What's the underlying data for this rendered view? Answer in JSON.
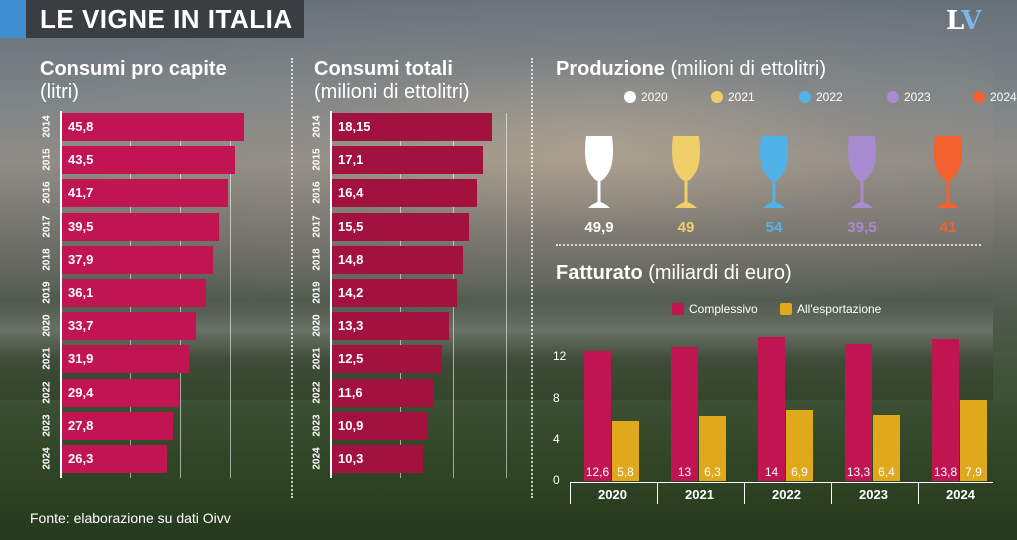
{
  "header": {
    "title": "LE VIGNE IN ITALIA",
    "logo_l": "L",
    "logo_v": "V"
  },
  "colors": {
    "accent_blue": "#3f8fd1",
    "bar_per_capita": "#c11552",
    "bar_total": "#a3123f",
    "complessivo": "#c11552",
    "esportazione": "#e0a91c"
  },
  "sections": {
    "per_capita_title": "Consumi pro capite",
    "per_capita_sub": "(litri)",
    "total_title": "Consumi totali",
    "total_sub": "(milioni di ettolitri)",
    "production_title": "Produzione",
    "production_sub": "(milioni di ettolitri)",
    "revenue_title": "Fatturato",
    "revenue_sub": "(miliardi di euro)"
  },
  "source": "Fonte: elaborazione su dati Oivv",
  "chart_data": [
    {
      "type": "bar",
      "orientation": "horizontal",
      "title": "Consumi pro capite (litri)",
      "categories": [
        "2014",
        "2015",
        "2016",
        "2017",
        "2018",
        "2019",
        "2020",
        "2021",
        "2022",
        "2023",
        "2024"
      ],
      "values": [
        45.8,
        43.5,
        41.7,
        39.5,
        37.9,
        36.1,
        33.7,
        31.9,
        29.4,
        27.8,
        26.3
      ],
      "labels": [
        "45,8",
        "43,5",
        "41,7",
        "39,5",
        "37,9",
        "36,1",
        "33,7",
        "31,9",
        "29,4",
        "27,8",
        "26,3"
      ],
      "xlim": [
        0,
        52
      ]
    },
    {
      "type": "bar",
      "orientation": "horizontal",
      "title": "Consumi totali (milioni di ettolitri)",
      "categories": [
        "2014",
        "2015",
        "2016",
        "2017",
        "2018",
        "2019",
        "2020",
        "2021",
        "2022",
        "2023",
        "2024"
      ],
      "values": [
        18.15,
        17.1,
        16.4,
        15.5,
        14.8,
        14.2,
        13.3,
        12.5,
        11.6,
        10.9,
        10.3
      ],
      "labels": [
        "18,15",
        "17,1",
        "16,4",
        "15,5",
        "14,8",
        "14,2",
        "13,3",
        "12,5",
        "11,6",
        "10,9",
        "10,3"
      ],
      "xlim": [
        0,
        20.5
      ]
    },
    {
      "type": "other",
      "title": "Produzione (milioni di ettolitri)",
      "categories": [
        "2020",
        "2021",
        "2022",
        "2023",
        "2024"
      ],
      "values": [
        49.9,
        49,
        54,
        39.5,
        41
      ],
      "labels": [
        "49,9",
        "49",
        "54",
        "39,5",
        "41"
      ],
      "colors": [
        "#ffffff",
        "#f0cf6a",
        "#4fb3e8",
        "#a98bd0",
        "#f2622f"
      ]
    },
    {
      "type": "bar",
      "title": "Fatturato (miliardi di euro)",
      "categories": [
        "2020",
        "2021",
        "2022",
        "2023",
        "2024"
      ],
      "series": [
        {
          "name": "Complessivo",
          "values": [
            12.6,
            13,
            14,
            13.3,
            13.8
          ],
          "labels": [
            "12,6",
            "13",
            "14",
            "13,3",
            "13,8"
          ]
        },
        {
          "name": "All'esportazione",
          "values": [
            5.8,
            6.3,
            6.9,
            6.4,
            7.9
          ],
          "labels": [
            "5,8",
            "6,3",
            "6,9",
            "6,4",
            "7,9"
          ]
        }
      ],
      "yticks": [
        "0",
        "4",
        "8",
        "12"
      ],
      "ylim": [
        0,
        15
      ]
    }
  ]
}
